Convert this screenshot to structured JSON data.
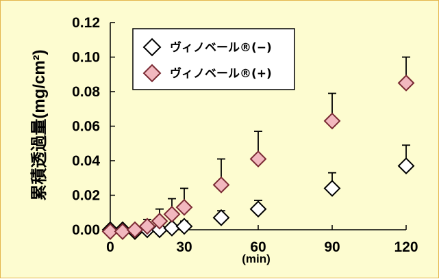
{
  "chart_data": {
    "type": "scatter",
    "xlabel": "(min)",
    "ylabel": "累積透過量(mg/cm²)",
    "xlim": [
      0,
      120
    ],
    "ylim": [
      0,
      0.12
    ],
    "x_ticks": [
      "0",
      "30",
      "60",
      "90",
      "120"
    ],
    "y_ticks": [
      "0.00",
      "0.02",
      "0.04",
      "0.06",
      "0.08",
      "0.10",
      "0.12"
    ],
    "grid": false,
    "legend_position": "top-left",
    "series": [
      {
        "name": "ヴィノベール®(−)",
        "marker": "diamond",
        "color": "#ffffff",
        "x": [
          0,
          5,
          10,
          15,
          20,
          25,
          30,
          45,
          60,
          90,
          120
        ],
        "y": [
          0.0,
          0.0,
          -0.001,
          0.0,
          0.0,
          0.001,
          0.002,
          0.007,
          0.012,
          0.024,
          0.037
        ],
        "err": [
          0.0,
          0.001,
          0.001,
          0.001,
          0.001,
          0.002,
          0.003,
          0.004,
          0.005,
          0.009,
          0.012
        ]
      },
      {
        "name": "ヴィノベール®(+)",
        "marker": "diamond",
        "color": "#f2b8bf",
        "x": [
          0,
          5,
          10,
          15,
          20,
          25,
          30,
          45,
          60,
          90,
          120
        ],
        "y": [
          -0.001,
          -0.001,
          0.0,
          0.002,
          0.005,
          0.009,
          0.013,
          0.026,
          0.041,
          0.063,
          0.085
        ],
        "err": [
          0.0,
          0.001,
          0.002,
          0.004,
          0.007,
          0.009,
          0.011,
          0.015,
          0.016,
          0.016,
          0.015
        ]
      }
    ]
  }
}
